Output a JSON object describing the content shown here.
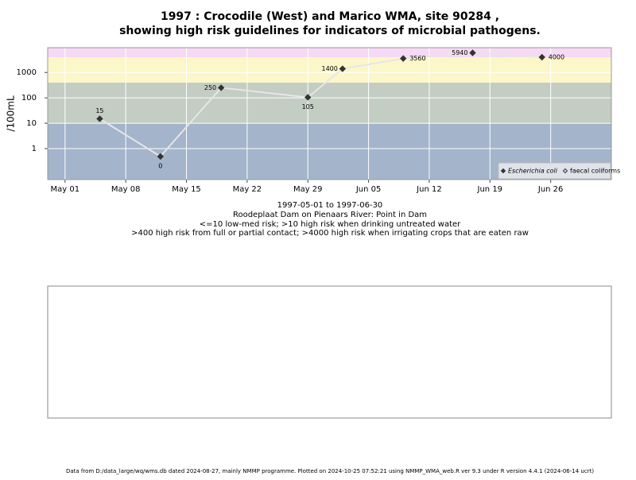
{
  "chart_data": {
    "type": "line",
    "title": [
      "1997 : Crocodile (West) and Marico WMA, site 90284 ,",
      "showing high risk guidelines for indicators of microbial pathogens."
    ],
    "y_label": "/100mL",
    "caption": [
      "1997-05-01 to 1997-06-30",
      "Roodeplaat Dam on Pienaars River: Point in Dam",
      "<=10 low-med risk; >10 high risk when drinking untreated water",
      ">400 high risk from full or partial contact; >4000 high risk when irrigating crops that are eaten raw"
    ],
    "footer": "Data from D:/data_large/wq/wms.db dated 2024-08-27, mainly NMMP programme. Plotted on 2024-10-25 07:52:21 using NMMP_WMA_web.R ver 9.3 under R version 4.4.1 (2024-06-14 ucrt)",
    "x": [
      "1997-05-05",
      "1997-05-12",
      "1997-05-19",
      "1997-05-29",
      "1997-06-02",
      "1997-06-09",
      "1997-06-17",
      "1997-06-25"
    ],
    "series": [
      {
        "name": "Escherichia coli",
        "color": "#333333",
        "marker": "filled",
        "values": [
          15,
          0.49,
          250,
          105,
          1400,
          3560,
          5940,
          4000
        ],
        "value_labels": [
          "15",
          "0",
          "250",
          "105",
          "1400",
          "3560",
          "5940",
          "4000"
        ]
      },
      {
        "name": "faecal coliforms",
        "color": "#333333",
        "marker": "open",
        "values": [
          null,
          null,
          null,
          null,
          null,
          null,
          null,
          null
        ]
      }
    ],
    "line_color": "#e6e6e6",
    "log_scale": true,
    "xlim": [
      "1997-04-29",
      "1997-07-03"
    ],
    "ylim": [
      0.06,
      9500
    ],
    "xticks": [
      {
        "value": "1997-05-01",
        "label": "May 01"
      },
      {
        "value": "1997-05-08",
        "label": "May 08"
      },
      {
        "value": "1997-05-15",
        "label": "May 15"
      },
      {
        "value": "1997-05-22",
        "label": "May 22"
      },
      {
        "value": "1997-05-29",
        "label": "May 29"
      },
      {
        "value": "1997-06-05",
        "label": "Jun 05"
      },
      {
        "value": "1997-06-12",
        "label": "Jun 12"
      },
      {
        "value": "1997-06-19",
        "label": "Jun 19"
      },
      {
        "value": "1997-06-26",
        "label": "Jun 26"
      }
    ],
    "yticks": [
      1,
      10,
      100,
      1000
    ],
    "grid": true,
    "bands": [
      {
        "from": 0.06,
        "to": 10,
        "color": "#a3b4cb"
      },
      {
        "from": 10,
        "to": 400,
        "color": "#c3cdc3"
      },
      {
        "from": 400,
        "to": 4000,
        "color": "#fbf7c9"
      },
      {
        "from": 4000,
        "to": 9500,
        "color": "#f6d9f4"
      }
    ],
    "legend_position": "lower right"
  }
}
